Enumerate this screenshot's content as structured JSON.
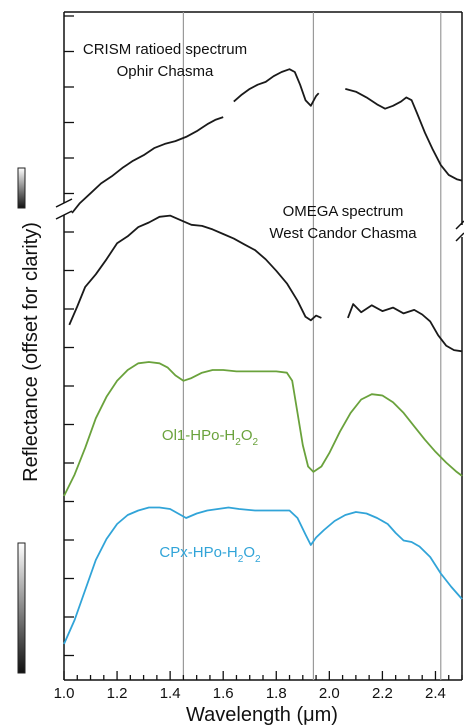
{
  "chart_data": {
    "type": "line",
    "xlabel": "Wavelength (μm)",
    "ylabel": "Reflectance (offset for clarity)",
    "xlim": [
      1.0,
      2.5
    ],
    "x_ticks": [
      "1.0",
      "1.2",
      "1.4",
      "1.6",
      "1.8",
      "2.0",
      "2.2",
      "2.4"
    ],
    "reference_lines_x": [
      1.45,
      1.94,
      2.42
    ],
    "grid": false,
    "series": [
      {
        "name": "CRISM ratioed spectrum",
        "name_line2": "Ophir Chasma",
        "color": "#1a1a1a",
        "segments": [
          [
            [
              1.03,
              0.0
            ],
            [
              1.06,
              0.07
            ],
            [
              1.1,
              0.14
            ],
            [
              1.14,
              0.21
            ],
            [
              1.18,
              0.26
            ],
            [
              1.22,
              0.32
            ],
            [
              1.26,
              0.37
            ],
            [
              1.3,
              0.41
            ],
            [
              1.34,
              0.46
            ],
            [
              1.38,
              0.49
            ],
            [
              1.42,
              0.51
            ],
            [
              1.46,
              0.54
            ],
            [
              1.5,
              0.58
            ],
            [
              1.54,
              0.63
            ],
            [
              1.57,
              0.66
            ],
            [
              1.6,
              0.68
            ]
          ],
          [
            [
              1.64,
              0.79
            ],
            [
              1.67,
              0.84
            ],
            [
              1.7,
              0.88
            ],
            [
              1.73,
              0.91
            ],
            [
              1.76,
              0.93
            ],
            [
              1.79,
              0.97
            ],
            [
              1.82,
              1.0
            ],
            [
              1.85,
              1.02
            ],
            [
              1.87,
              1.0
            ],
            [
              1.89,
              0.91
            ],
            [
              1.91,
              0.8
            ],
            [
              1.93,
              0.76
            ],
            [
              1.95,
              0.83
            ],
            [
              1.96,
              0.85
            ]
          ],
          [
            [
              2.06,
              0.88
            ],
            [
              2.1,
              0.86
            ],
            [
              2.14,
              0.82
            ],
            [
              2.18,
              0.77
            ],
            [
              2.21,
              0.74
            ],
            [
              2.24,
              0.76
            ],
            [
              2.27,
              0.79
            ],
            [
              2.29,
              0.82
            ],
            [
              2.31,
              0.8
            ],
            [
              2.33,
              0.71
            ],
            [
              2.36,
              0.57
            ],
            [
              2.39,
              0.45
            ],
            [
              2.42,
              0.34
            ],
            [
              2.45,
              0.27
            ],
            [
              2.48,
              0.24
            ],
            [
              2.5,
              0.23
            ]
          ]
        ]
      },
      {
        "name": "OMEGA spectrum",
        "name_line2": "West Candor Chasma",
        "color": "#1a1a1a",
        "segments": [
          [
            [
              1.02,
              0.01
            ],
            [
              1.05,
              0.17
            ],
            [
              1.08,
              0.34
            ],
            [
              1.12,
              0.45
            ],
            [
              1.16,
              0.58
            ],
            [
              1.2,
              0.72
            ],
            [
              1.24,
              0.78
            ],
            [
              1.28,
              0.86
            ],
            [
              1.32,
              0.9
            ],
            [
              1.36,
              0.95
            ],
            [
              1.4,
              0.96
            ],
            [
              1.44,
              0.92
            ],
            [
              1.48,
              0.88
            ],
            [
              1.52,
              0.87
            ],
            [
              1.56,
              0.84
            ],
            [
              1.6,
              0.8
            ],
            [
              1.64,
              0.76
            ],
            [
              1.68,
              0.71
            ],
            [
              1.72,
              0.66
            ],
            [
              1.76,
              0.58
            ],
            [
              1.8,
              0.48
            ],
            [
              1.84,
              0.37
            ],
            [
              1.88,
              0.22
            ],
            [
              1.91,
              0.08
            ],
            [
              1.93,
              0.05
            ],
            [
              1.95,
              0.09
            ],
            [
              1.97,
              0.07
            ]
          ],
          [
            [
              2.07,
              0.07
            ],
            [
              2.09,
              0.19
            ],
            [
              2.12,
              0.12
            ],
            [
              2.16,
              0.18
            ],
            [
              2.2,
              0.13
            ],
            [
              2.24,
              0.16
            ],
            [
              2.28,
              0.11
            ],
            [
              2.32,
              0.14
            ],
            [
              2.35,
              0.1
            ],
            [
              2.38,
              0.04
            ],
            [
              2.41,
              -0.08
            ],
            [
              2.44,
              -0.17
            ],
            [
              2.47,
              -0.21
            ],
            [
              2.5,
              -0.22
            ]
          ]
        ]
      },
      {
        "name": "Ol1-HPo-H2O2",
        "color": "#6aa23c",
        "label": {
          "main": "Ol1-HPo-H",
          "sub1": "2",
          "mid": "O",
          "sub2": "2"
        },
        "segments": [
          [
            [
              1.0,
              0.0
            ],
            [
              1.04,
              0.16
            ],
            [
              1.08,
              0.36
            ],
            [
              1.12,
              0.58
            ],
            [
              1.16,
              0.74
            ],
            [
              1.2,
              0.86
            ],
            [
              1.24,
              0.94
            ],
            [
              1.28,
              0.99
            ],
            [
              1.32,
              1.0
            ],
            [
              1.36,
              0.99
            ],
            [
              1.39,
              0.96
            ],
            [
              1.42,
              0.9
            ],
            [
              1.45,
              0.86
            ],
            [
              1.48,
              0.88
            ],
            [
              1.52,
              0.92
            ],
            [
              1.56,
              0.94
            ],
            [
              1.6,
              0.94
            ],
            [
              1.65,
              0.93
            ],
            [
              1.7,
              0.93
            ],
            [
              1.75,
              0.93
            ],
            [
              1.8,
              0.93
            ],
            [
              1.84,
              0.92
            ],
            [
              1.86,
              0.86
            ],
            [
              1.88,
              0.62
            ],
            [
              1.9,
              0.38
            ],
            [
              1.92,
              0.22
            ],
            [
              1.94,
              0.18
            ],
            [
              1.97,
              0.22
            ],
            [
              2.0,
              0.32
            ],
            [
              2.04,
              0.48
            ],
            [
              2.08,
              0.62
            ],
            [
              2.12,
              0.72
            ],
            [
              2.16,
              0.76
            ],
            [
              2.2,
              0.75
            ],
            [
              2.24,
              0.7
            ],
            [
              2.28,
              0.62
            ],
            [
              2.32,
              0.52
            ],
            [
              2.36,
              0.42
            ],
            [
              2.4,
              0.33
            ],
            [
              2.44,
              0.25
            ],
            [
              2.48,
              0.18
            ],
            [
              2.5,
              0.15
            ]
          ]
        ]
      },
      {
        "name": "CPx-HPo-H2O2",
        "color": "#31a4d8",
        "label": {
          "main": "CPx-HPo-H",
          "sub1": "2",
          "mid": "O",
          "sub2": "2"
        },
        "segments": [
          [
            [
              1.0,
              0.0
            ],
            [
              1.04,
              0.16
            ],
            [
              1.08,
              0.36
            ],
            [
              1.12,
              0.56
            ],
            [
              1.16,
              0.7
            ],
            [
              1.2,
              0.8
            ],
            [
              1.24,
              0.86
            ],
            [
              1.28,
              0.89
            ],
            [
              1.32,
              0.91
            ],
            [
              1.36,
              0.91
            ],
            [
              1.4,
              0.9
            ],
            [
              1.43,
              0.87
            ],
            [
              1.46,
              0.84
            ],
            [
              1.5,
              0.87
            ],
            [
              1.54,
              0.89
            ],
            [
              1.58,
              0.9
            ],
            [
              1.62,
              0.91
            ],
            [
              1.66,
              0.9
            ],
            [
              1.72,
              0.89
            ],
            [
              1.8,
              0.89
            ],
            [
              1.85,
              0.89
            ],
            [
              1.88,
              0.84
            ],
            [
              1.91,
              0.73
            ],
            [
              1.93,
              0.66
            ],
            [
              1.95,
              0.71
            ],
            [
              1.98,
              0.76
            ],
            [
              2.02,
              0.82
            ],
            [
              2.06,
              0.86
            ],
            [
              2.1,
              0.88
            ],
            [
              2.14,
              0.87
            ],
            [
              2.18,
              0.84
            ],
            [
              2.22,
              0.8
            ],
            [
              2.25,
              0.74
            ],
            [
              2.28,
              0.69
            ],
            [
              2.31,
              0.68
            ],
            [
              2.34,
              0.65
            ],
            [
              2.38,
              0.58
            ],
            [
              2.42,
              0.47
            ],
            [
              2.46,
              0.38
            ],
            [
              2.5,
              0.3
            ]
          ]
        ]
      }
    ]
  }
}
